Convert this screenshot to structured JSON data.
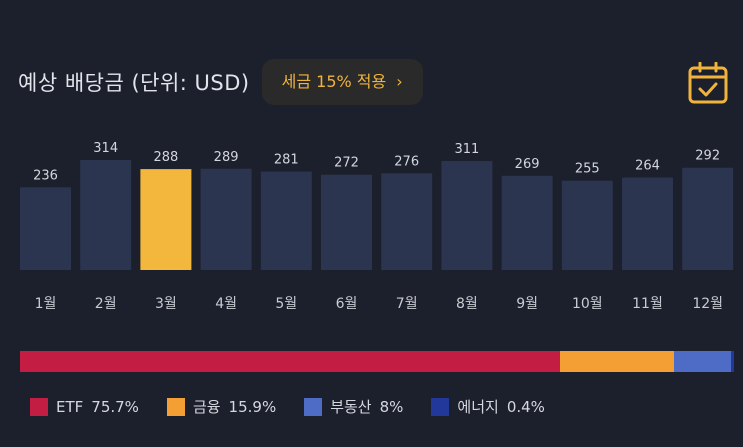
{
  "header": {
    "title": "예상 배당금 (단위: USD)",
    "tax_button_label": "세금 15% 적용",
    "tax_button_chevron": "›",
    "calendar_icon": "calendar-check-icon"
  },
  "chart_data": {
    "type": "bar",
    "categories": [
      "1월",
      "2월",
      "3월",
      "4월",
      "5월",
      "6월",
      "7월",
      "8월",
      "9월",
      "10월",
      "11월",
      "12월"
    ],
    "values": [
      236,
      314,
      288,
      289,
      281,
      272,
      276,
      311,
      269,
      255,
      264,
      292
    ],
    "highlight_index": 2,
    "bar_color": "#2c3550",
    "highlight_color": "#f3b73d",
    "ylim": [
      0,
      314
    ],
    "grid": false
  },
  "allocation": {
    "segments": [
      {
        "name": "ETF",
        "percent_label": "75.7%",
        "value": 75.7,
        "color": "#c31d44"
      },
      {
        "name": "금융",
        "percent_label": "15.9%",
        "value": 15.9,
        "color": "#f39f33"
      },
      {
        "name": "부동산",
        "percent_label": "8%",
        "value": 8.0,
        "color": "#4e6cc6"
      },
      {
        "name": "에너지",
        "percent_label": "0.4%",
        "value": 0.4,
        "color": "#22389a"
      }
    ]
  }
}
